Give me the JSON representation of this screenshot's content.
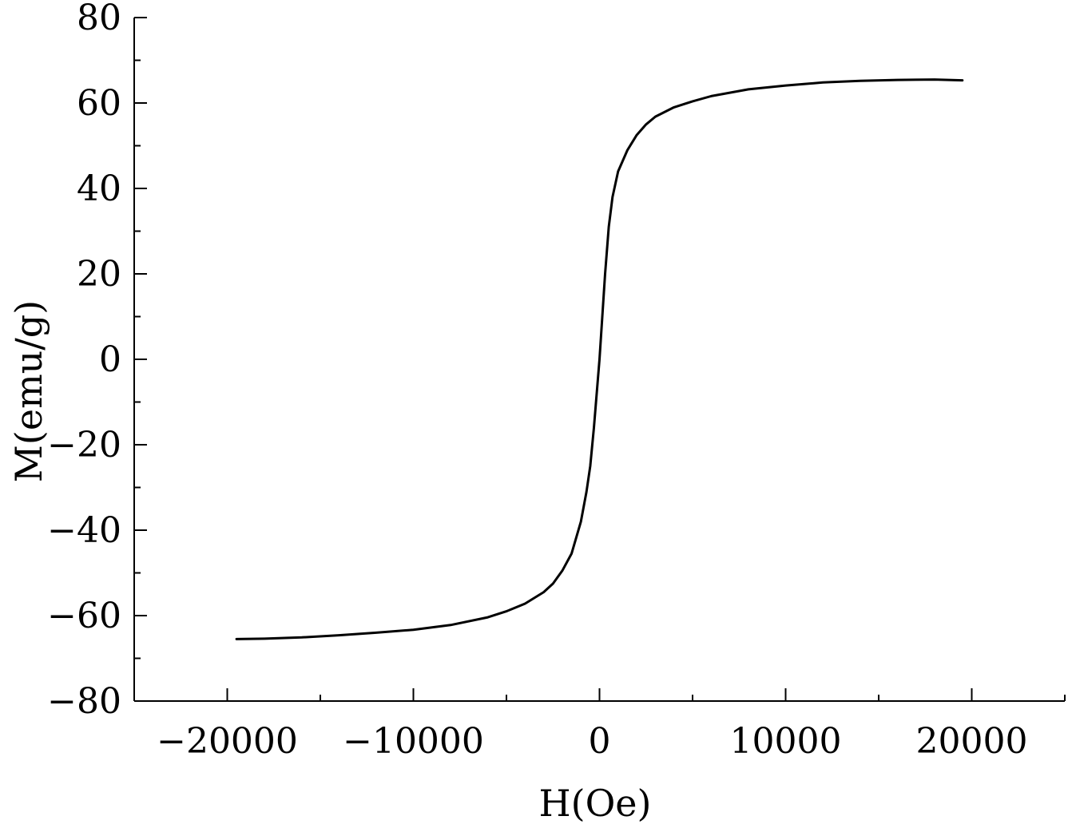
{
  "chart_data": {
    "type": "line",
    "title": "",
    "xlabel": "H(Oe)",
    "ylabel": "M(emu/g)",
    "xlim": [
      -25000,
      25000
    ],
    "ylim": [
      -80,
      80
    ],
    "x_ticks": [
      -20000,
      -10000,
      0,
      10000,
      20000
    ],
    "x_tick_labels": [
      "−20000",
      "−10000",
      "0",
      "10000",
      "20000"
    ],
    "x_minor_ticks": [
      -25000,
      -15000,
      -5000,
      5000,
      15000,
      25000
    ],
    "y_ticks": [
      -80,
      -60,
      -40,
      -20,
      0,
      20,
      40,
      60,
      80
    ],
    "y_tick_labels": [
      "−80",
      "−60",
      "−40",
      "−20",
      "0",
      "20",
      "40",
      "60",
      "80"
    ],
    "y_minor_ticks": [
      -70,
      -50,
      -30,
      -10,
      10,
      30,
      50,
      70
    ],
    "grid": false,
    "legend": "none",
    "series": [
      {
        "color": "#000000",
        "x": [
          -19500,
          -18000,
          -16000,
          -14000,
          -12000,
          -10000,
          -8000,
          -6000,
          -5000,
          -4000,
          -3000,
          -2500,
          -2000,
          -1500,
          -1000,
          -700,
          -500,
          -300,
          -150,
          0,
          150,
          300,
          500,
          700,
          1000,
          1500,
          2000,
          2500,
          3000,
          4000,
          5000,
          6000,
          8000,
          10000,
          12000,
          14000,
          16000,
          18000,
          19500
        ],
        "y": [
          -65.5,
          -65.4,
          -65.1,
          -64.6,
          -64.0,
          -63.3,
          -62.2,
          -60.4,
          -59.0,
          -57.2,
          -54.5,
          -52.5,
          -49.5,
          -45.5,
          -38,
          -31,
          -25,
          -16,
          -8,
          0,
          10,
          20,
          31,
          38,
          44,
          49,
          52.5,
          55,
          56.8,
          59.0,
          60.4,
          61.6,
          63.2,
          64.1,
          64.8,
          65.2,
          65.4,
          65.5,
          65.3
        ]
      }
    ]
  }
}
